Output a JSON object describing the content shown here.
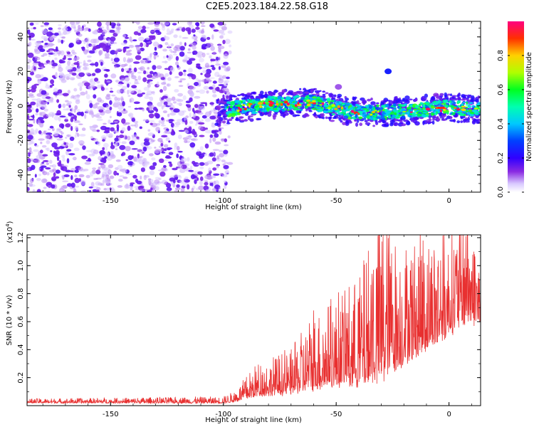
{
  "title": "C2E5.2023.184.22.58.G18",
  "colors": {
    "signal_line": "#e83030",
    "axis": "#000000",
    "spectrogram_noise": "#6a00ff"
  },
  "chart_data": [
    {
      "type": "heatmap",
      "name": "spectrogram",
      "xlabel": "Height of straight line (km)",
      "ylabel": "Frequency (Hz)",
      "xlim": [
        -187,
        14
      ],
      "ylim": [
        -50,
        49
      ],
      "xticks": [
        -150,
        -100,
        -50,
        0
      ],
      "xtick_labels": [
        "-150",
        "-100",
        "-50",
        "0"
      ],
      "yticks": [
        -40,
        -20,
        0,
        20,
        40
      ],
      "ytick_labels": [
        "-40",
        "-20",
        "0",
        "20",
        "40"
      ],
      "colorbar": {
        "label": "Normalized spectral amplitude",
        "range": [
          0,
          1
        ],
        "ticks": [
          0.0,
          0.2,
          0.4,
          0.6,
          0.8
        ],
        "tick_labels": [
          "0.0",
          "0.2",
          "0.4",
          "0.6",
          "0.8"
        ],
        "colormap": "rainbow"
      },
      "regions": [
        {
          "description_type": "noise",
          "x_range": [
            -187,
            -97
          ],
          "y_range": [
            -50,
            49
          ],
          "amplitude": 0.1
        },
        {
          "description_type": "signal_band",
          "x_range": [
            -103,
            14
          ],
          "center_frequency": [
            [
              -103,
              -3
            ],
            [
              -80,
              1
            ],
            [
              -60,
              2
            ],
            [
              -45,
              -3
            ],
            [
              -30,
              -4
            ],
            [
              -10,
              -2
            ],
            [
              0,
              -1
            ],
            [
              14,
              -2
            ]
          ],
          "amplitude_peak": 1.0
        }
      ],
      "blobs": [
        {
          "x": -27,
          "y": 20,
          "amplitude": 0.25
        },
        {
          "x": -49,
          "y": 11,
          "amplitude": 0.1
        }
      ],
      "grid": false
    },
    {
      "type": "line",
      "name": "snr",
      "xlabel": "Height of straight line (km)",
      "ylabel": "SNR (10 * v/v)",
      "y_multiplier_label": "(x10",
      "y_multiplier_exp": "4",
      "y_multiplier_close": ")",
      "xlim": [
        -187,
        14
      ],
      "ylim": [
        0,
        1.22
      ],
      "xticks": [
        -150,
        -100,
        -50,
        0
      ],
      "xtick_labels": [
        "-150",
        "-100",
        "-50",
        "0"
      ],
      "yticks": [
        0.2,
        0.4,
        0.6,
        0.8,
        1.0,
        1.2
      ],
      "ytick_labels": [
        "0.2",
        "0.4",
        "0.6",
        "0.8",
        "1.0",
        "1.2"
      ],
      "series": [
        {
          "color": "#e83030",
          "envelope": [
            {
              "x": -187,
              "base": 0.02,
              "amp": 0.02
            },
            {
              "x": -100,
              "base": 0.02,
              "amp": 0.03
            },
            {
              "x": -95,
              "base": 0.03,
              "amp": 0.05
            },
            {
              "x": -85,
              "base": 0.08,
              "amp": 0.15
            },
            {
              "x": -70,
              "base": 0.1,
              "amp": 0.2
            },
            {
              "x": -60,
              "base": 0.15,
              "amp": 0.35
            },
            {
              "x": -50,
              "base": 0.18,
              "amp": 0.4
            },
            {
              "x": -40,
              "base": 0.2,
              "amp": 0.5
            },
            {
              "x": -30,
              "base": 0.25,
              "amp": 0.75
            },
            {
              "x": -20,
              "base": 0.35,
              "amp": 0.55
            },
            {
              "x": -10,
              "base": 0.45,
              "amp": 0.55
            },
            {
              "x": 0,
              "base": 0.55,
              "amp": 0.45
            },
            {
              "x": 8,
              "base": 0.65,
              "amp": 0.5
            },
            {
              "x": 14,
              "base": 0.6,
              "amp": 0.3
            }
          ],
          "peaks": [
            {
              "x": -33.5,
              "y": 0.97
            },
            {
              "x": -17,
              "y": 0.96
            },
            {
              "x": -11,
              "y": 1.02
            },
            {
              "x": 3,
              "y": 1.07
            },
            {
              "x": 7.5,
              "y": 1.21
            },
            {
              "x": 11,
              "y": 1.1
            },
            {
              "x": -60,
              "y": 0.68
            },
            {
              "x": -45,
              "y": 0.48
            },
            {
              "x": -25,
              "y": 0.72
            }
          ]
        }
      ],
      "grid": false
    }
  ]
}
